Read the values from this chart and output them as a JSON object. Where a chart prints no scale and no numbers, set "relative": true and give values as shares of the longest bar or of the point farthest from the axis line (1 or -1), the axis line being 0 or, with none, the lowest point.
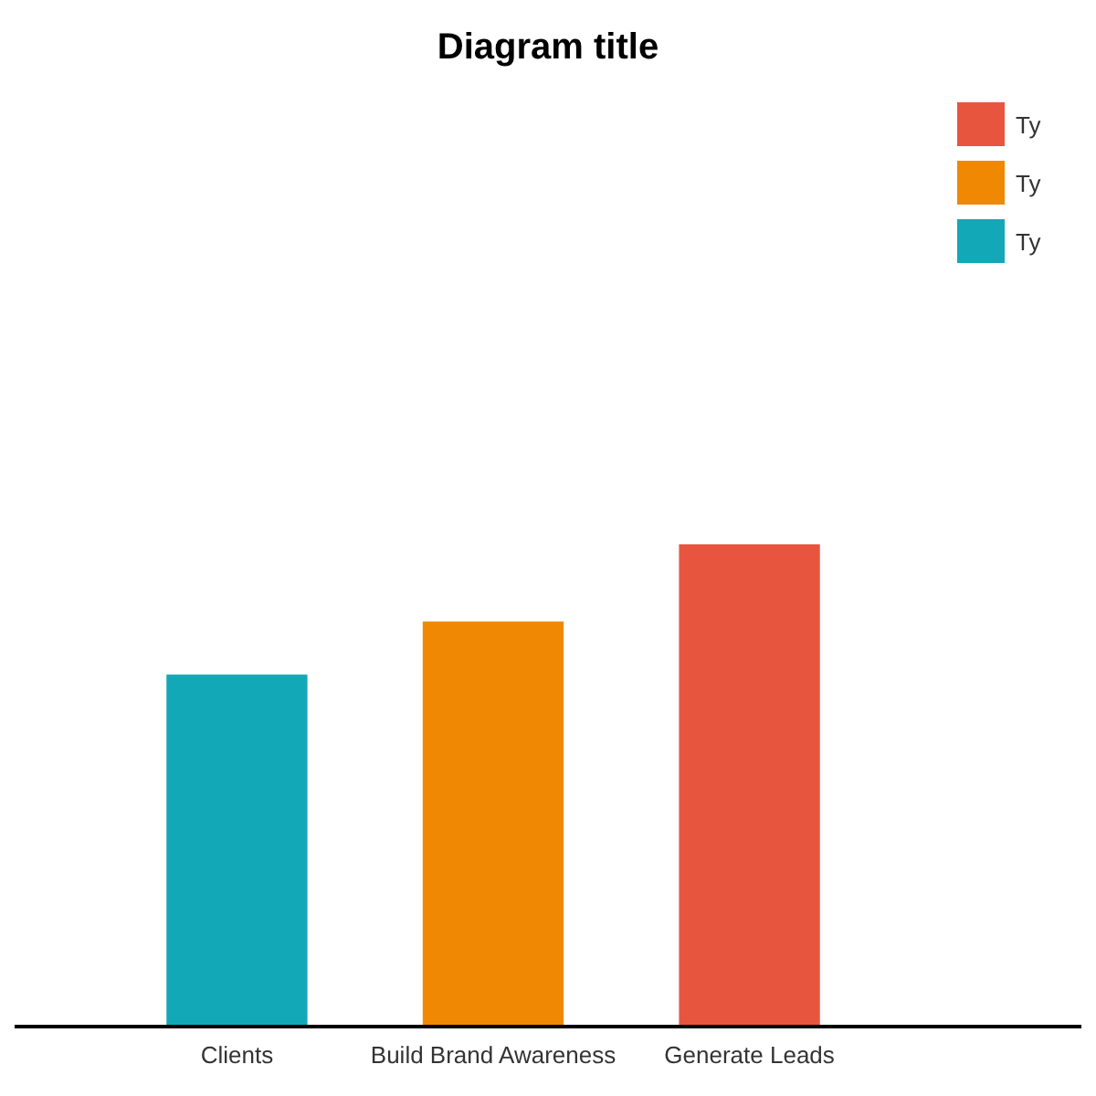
{
  "chart_data": {
    "type": "bar",
    "title": "Diagram title",
    "relative": true,
    "categories": [
      "Clients",
      "Build Brand Awareness",
      "Generate Leads"
    ],
    "legend": "top right",
    "series": [
      {
        "name": "Ty",
        "color": "#e8553f",
        "values": [
          null,
          null,
          1
        ]
      },
      {
        "name": "Ty",
        "color": "#f08804",
        "values": [
          null,
          0.84,
          null
        ]
      },
      {
        "name": "Ty",
        "color": "#13a8b8",
        "values": [
          0.73,
          null,
          null
        ]
      }
    ]
  }
}
